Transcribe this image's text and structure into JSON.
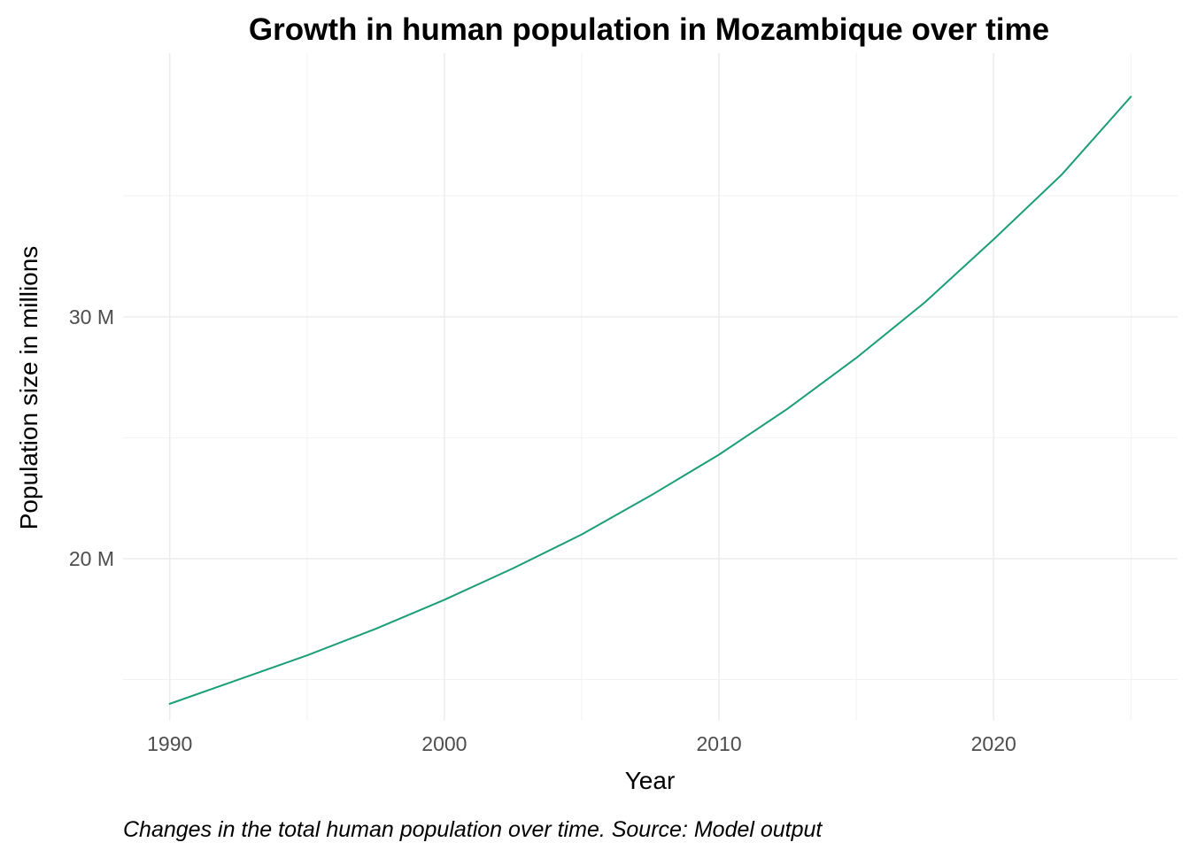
{
  "chart_data": {
    "type": "line",
    "title": "Growth in human population in Mozambique over time",
    "xlabel": "Year",
    "ylabel": "Population size in millions",
    "caption": "Changes in the total human population over time. Source: Model output",
    "xlim": [
      1988.3,
      2026.7
    ],
    "ylim": [
      13.3,
      40.9
    ],
    "x_ticks": [
      1990,
      2000,
      2010,
      2020
    ],
    "x_tick_labels": [
      "1990",
      "2000",
      "2010",
      "2020"
    ],
    "y_ticks": [
      20,
      30
    ],
    "y_tick_labels": [
      "20 M",
      "30 M"
    ],
    "grid": true,
    "legend": "none",
    "line_color": "#1b9e77",
    "series": [
      {
        "x": [
          1990,
          1992.5,
          1995,
          1997.5,
          2000,
          2002.5,
          2005,
          2007.5,
          2010,
          2012.5,
          2015,
          2017.5,
          2020,
          2022.5,
          2025
        ],
        "values": [
          14.0,
          15.0,
          16.0,
          17.1,
          18.3,
          19.6,
          21.0,
          22.6,
          24.3,
          26.2,
          28.3,
          30.6,
          33.2,
          35.9,
          39.1
        ]
      }
    ]
  }
}
